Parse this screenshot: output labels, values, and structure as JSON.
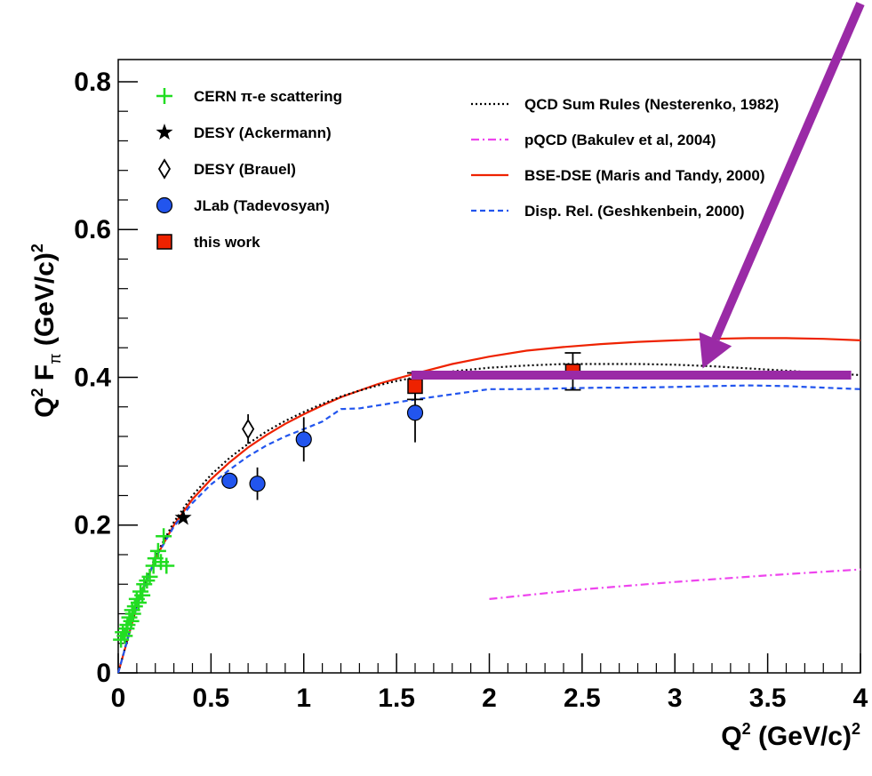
{
  "chart_data": {
    "type": "scatter",
    "xlim": [
      0,
      4
    ],
    "ylim": [
      0,
      0.83
    ],
    "x_ticks": [
      {
        "value": 0,
        "label": "0"
      },
      {
        "value": 0.5,
        "label": "0.5"
      },
      {
        "value": 1,
        "label": "1"
      },
      {
        "value": 1.5,
        "label": "1.5"
      },
      {
        "value": 2,
        "label": "2"
      },
      {
        "value": 2.5,
        "label": "2.5"
      },
      {
        "value": 3,
        "label": "3"
      },
      {
        "value": 3.5,
        "label": "3.5"
      },
      {
        "value": 4,
        "label": "4"
      }
    ],
    "y_ticks": [
      {
        "value": 0,
        "label": "0"
      },
      {
        "value": 0.2,
        "label": "0.2"
      },
      {
        "value": 0.4,
        "label": "0.4"
      },
      {
        "value": 0.6,
        "label": "0.6"
      },
      {
        "value": 0.8,
        "label": "0.8"
      }
    ],
    "xlabel": {
      "main": "Q",
      "sup": "2",
      "rest": " (GeV/c)",
      "sup2": "2"
    },
    "ylabel": {
      "q": "Q",
      "qsup": "2",
      "f": " F",
      "fsub": "π",
      "rest": "  (GeV/c)",
      "rsup": "2"
    },
    "grid": false,
    "legend_left": [
      {
        "label": "CERN π-e scattering",
        "marker": "plus",
        "color": "#22dd22"
      },
      {
        "label": "DESY (Ackermann)",
        "marker": "star",
        "color": "#000000"
      },
      {
        "label": "DESY (Brauel)",
        "marker": "diamond",
        "color": "#000000"
      },
      {
        "label": "JLab (Tadevosyan)",
        "marker": "circle",
        "color": "#2255ee"
      },
      {
        "label": "this work",
        "marker": "square",
        "color": "#ee2200"
      }
    ],
    "legend_right": [
      {
        "label": "QCD Sum Rules (Nesterenko, 1982)",
        "dash": "2,3",
        "color": "#000000"
      },
      {
        "label": "pQCD (Bakulev et al, 2004)",
        "dash": "9,4,2,4",
        "color": "#ee44ee"
      },
      {
        "label": "BSE-DSE (Maris and Tandy, 2000)",
        "dash": "",
        "color": "#ee2200"
      },
      {
        "label": "Disp. Rel. (Geshkenbein, 2000)",
        "dash": "6,4",
        "color": "#2255ee"
      }
    ],
    "series_points": [
      {
        "name": "CERN π-e scattering",
        "marker": "plus",
        "color": "#22dd22",
        "points": [
          [
            0.015,
            0.045
          ],
          [
            0.025,
            0.055
          ],
          [
            0.035,
            0.05
          ],
          [
            0.045,
            0.06
          ],
          [
            0.05,
            0.065
          ],
          [
            0.06,
            0.075
          ],
          [
            0.07,
            0.07
          ],
          [
            0.075,
            0.085
          ],
          [
            0.08,
            0.08
          ],
          [
            0.09,
            0.09
          ],
          [
            0.1,
            0.1
          ],
          [
            0.11,
            0.095
          ],
          [
            0.12,
            0.11
          ],
          [
            0.13,
            0.105
          ],
          [
            0.14,
            0.12
          ],
          [
            0.155,
            0.125
          ],
          [
            0.17,
            0.13
          ],
          [
            0.19,
            0.145
          ],
          [
            0.2,
            0.155
          ],
          [
            0.215,
            0.165
          ],
          [
            0.23,
            0.15
          ],
          [
            0.245,
            0.185
          ],
          [
            0.26,
            0.145
          ]
        ]
      },
      {
        "name": "DESY (Ackermann)",
        "marker": "star",
        "color": "#000000",
        "points": [
          [
            0.35,
            0.21
          ]
        ]
      },
      {
        "name": "DESY (Brauel)",
        "marker": "diamond",
        "color": "#000000",
        "points": [
          [
            0.7,
            0.33,
            0.02
          ]
        ]
      },
      {
        "name": "JLab (Tadevosyan)",
        "marker": "circle",
        "color": "#2255ee",
        "points": [
          [
            0.6,
            0.26,
            0.01
          ],
          [
            0.75,
            0.256,
            0.022
          ],
          [
            1.0,
            0.316,
            0.03
          ],
          [
            1.6,
            0.352,
            0.04
          ]
        ]
      },
      {
        "name": "this work",
        "marker": "square",
        "color": "#ee2200",
        "points": [
          [
            1.6,
            0.388,
            0.018
          ],
          [
            2.45,
            0.408,
            0.025
          ]
        ]
      }
    ],
    "series_curves": [
      {
        "name": "BSE-DSE (Maris and Tandy, 2000)",
        "color": "#ee2200",
        "dash": "",
        "x": [
          0,
          0.1,
          0.2,
          0.3,
          0.4,
          0.5,
          0.6,
          0.7,
          0.8,
          0.9,
          1.0,
          1.1,
          1.2,
          1.3,
          1.4,
          1.5,
          1.6,
          1.8,
          2.0,
          2.2,
          2.4,
          2.6,
          2.8,
          3.0,
          3.2,
          3.4,
          3.6,
          3.8,
          4.0
        ],
        "y": [
          0,
          0.09,
          0.155,
          0.2,
          0.235,
          0.262,
          0.285,
          0.305,
          0.322,
          0.337,
          0.35,
          0.362,
          0.373,
          0.382,
          0.391,
          0.398,
          0.405,
          0.418,
          0.428,
          0.436,
          0.441,
          0.445,
          0.448,
          0.45,
          0.452,
          0.453,
          0.453,
          0.452,
          0.45
        ]
      },
      {
        "name": "QCD Sum Rules (Nesterenko, 1982)",
        "color": "#000000",
        "dash": "2,3",
        "x": [
          0,
          0.1,
          0.2,
          0.3,
          0.4,
          0.5,
          0.6,
          0.7,
          0.8,
          0.9,
          1.0,
          1.1,
          1.2,
          1.3,
          1.4,
          1.5,
          1.6,
          1.8,
          2.0,
          2.2,
          2.4,
          2.6,
          2.8,
          3.0,
          3.2,
          3.4,
          3.6,
          3.8,
          4.0
        ],
        "y": [
          0,
          0.092,
          0.158,
          0.204,
          0.24,
          0.268,
          0.291,
          0.31,
          0.327,
          0.341,
          0.353,
          0.364,
          0.374,
          0.382,
          0.389,
          0.395,
          0.4,
          0.408,
          0.413,
          0.416,
          0.418,
          0.418,
          0.418,
          0.417,
          0.415,
          0.412,
          0.409,
          0.406,
          0.403
        ]
      },
      {
        "name": "Disp. Rel. (Geshkenbein, 2000)",
        "color": "#2255ee",
        "dash": "6,4",
        "x": [
          0,
          0.1,
          0.2,
          0.3,
          0.4,
          0.5,
          0.6,
          0.7,
          0.8,
          0.9,
          1.0,
          1.1,
          1.2,
          1.3,
          1.4,
          1.5,
          1.6,
          1.8,
          2.0,
          2.2,
          2.4,
          2.6,
          2.8,
          3.0,
          3.2,
          3.4,
          3.6,
          3.8,
          4.0
        ],
        "y": [
          0,
          0.09,
          0.155,
          0.198,
          0.23,
          0.255,
          0.275,
          0.293,
          0.308,
          0.32,
          0.33,
          0.34,
          0.357,
          0.358,
          0.362,
          0.366,
          0.37,
          0.377,
          0.384,
          0.384,
          0.385,
          0.386,
          0.386,
          0.387,
          0.388,
          0.389,
          0.388,
          0.386,
          0.384
        ]
      },
      {
        "name": "pQCD (Bakulev et al, 2004)",
        "color": "#ee44ee",
        "dash": "9,4,2,4",
        "x": [
          2.0,
          2.5,
          3.0,
          3.5,
          4.0
        ],
        "y": [
          0.1,
          0.113,
          0.123,
          0.132,
          0.14
        ]
      }
    ],
    "annotations": {
      "arrow_color": "#9a2aa6",
      "highlight_line": {
        "x": [
          1.58,
          3.95
        ],
        "y": 0.403
      },
      "arrow_tip": {
        "x": 3.15,
        "y": 0.412
      }
    }
  }
}
